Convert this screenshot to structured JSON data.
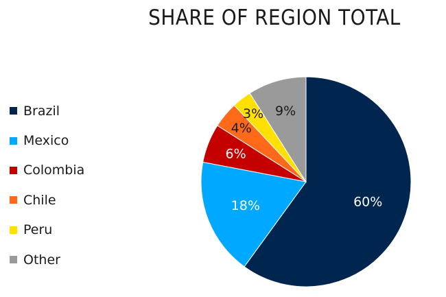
{
  "chart_data": {
    "type": "pie",
    "title": "SHARE OF REGION TOTAL",
    "legend_position": "left",
    "slices": [
      {
        "name": "Brazil",
        "value": 60,
        "label": "60%",
        "color": "#00264f",
        "label_color": "#ffffff"
      },
      {
        "name": "Mexico",
        "value": 18,
        "label": "18%",
        "color": "#00a8ff",
        "label_color": "#ffffff"
      },
      {
        "name": "Colombia",
        "value": 6,
        "label": "6%",
        "color": "#c40000",
        "label_color": "#ffffff"
      },
      {
        "name": "Chile",
        "value": 4,
        "label": "4%",
        "color": "#ff6a1a",
        "label_color": "#1a1a1a"
      },
      {
        "name": "Peru",
        "value": 3,
        "label": "3%",
        "color": "#ffe000",
        "label_color": "#1a1a1a"
      },
      {
        "name": "Other",
        "value": 9,
        "label": "9%",
        "color": "#9a9a9a",
        "label_color": "#1a1a1a"
      }
    ]
  }
}
